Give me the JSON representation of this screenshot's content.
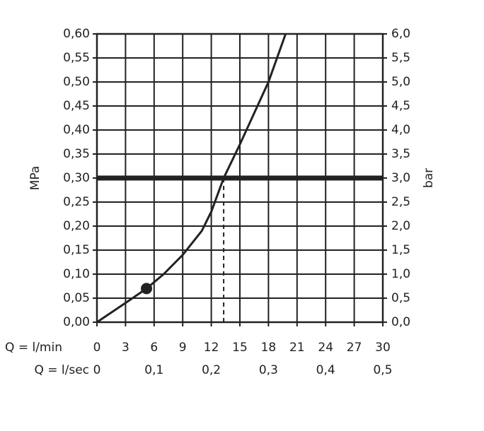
{
  "chart_data": {
    "type": "line",
    "xlabel": "Q = l/min",
    "x2label": "Q = l/sec",
    "ylabel": "MPa",
    "y2label": "bar",
    "xlim": [
      0,
      30
    ],
    "xticks": [
      0,
      3,
      6,
      9,
      12,
      15,
      18,
      21,
      24,
      27,
      30
    ],
    "x2lim": [
      0,
      0.5
    ],
    "x2ticks": [
      0,
      {
        "value": 0.1,
        "label": "0,1"
      },
      {
        "value": 0.2,
        "label": "0,2"
      },
      {
        "value": 0.3,
        "label": "0,3"
      },
      {
        "value": 0.4,
        "label": "0,4"
      },
      {
        "value": 0.5,
        "label": "0,5"
      }
    ],
    "ylim": [
      0,
      0.6
    ],
    "yticks": [
      {
        "value": 0,
        "label": "0,00"
      },
      {
        "value": 0.05,
        "label": "0,05"
      },
      {
        "value": 0.1,
        "label": "0,10"
      },
      {
        "value": 0.15,
        "label": "0,15"
      },
      {
        "value": 0.2,
        "label": "0,20"
      },
      {
        "value": 0.25,
        "label": "0,25"
      },
      {
        "value": 0.3,
        "label": "0,30"
      },
      {
        "value": 0.35,
        "label": "0,35"
      },
      {
        "value": 0.4,
        "label": "0,40"
      },
      {
        "value": 0.45,
        "label": "0,45"
      },
      {
        "value": 0.5,
        "label": "0,50"
      },
      {
        "value": 0.55,
        "label": "0,55"
      },
      {
        "value": 0.6,
        "label": "0,60"
      }
    ],
    "y2lim": [
      0,
      6
    ],
    "y2ticks": [
      {
        "value": 0,
        "label": "0,0"
      },
      {
        "value": 0.5,
        "label": "0,5"
      },
      {
        "value": 1,
        "label": "1,0"
      },
      {
        "value": 1.5,
        "label": "1,5"
      },
      {
        "value": 2,
        "label": "2,0"
      },
      {
        "value": 2.5,
        "label": "2,5"
      },
      {
        "value": 3,
        "label": "3,0"
      },
      {
        "value": 3.5,
        "label": "3,5"
      },
      {
        "value": 4,
        "label": "4,0"
      },
      {
        "value": 4.5,
        "label": "4,5"
      },
      {
        "value": 5,
        "label": "5,0"
      },
      {
        "value": 5.5,
        "label": "5,5"
      },
      {
        "value": 6,
        "label": "6,0"
      }
    ],
    "grid": true,
    "series": [
      {
        "color": "#222222",
        "x": [
          0,
          3,
          5.2,
          7,
          9,
          11,
          12,
          13.3,
          15,
          18,
          19.8
        ],
        "values": [
          0,
          0.04,
          0.07,
          0.1,
          0.14,
          0.19,
          0.23,
          0.3,
          0.37,
          0.5,
          0.6
        ]
      }
    ],
    "marker": {
      "x": 5.2,
      "y": 0.07
    },
    "reference_y": 0.3,
    "reference_x": 13.3
  }
}
